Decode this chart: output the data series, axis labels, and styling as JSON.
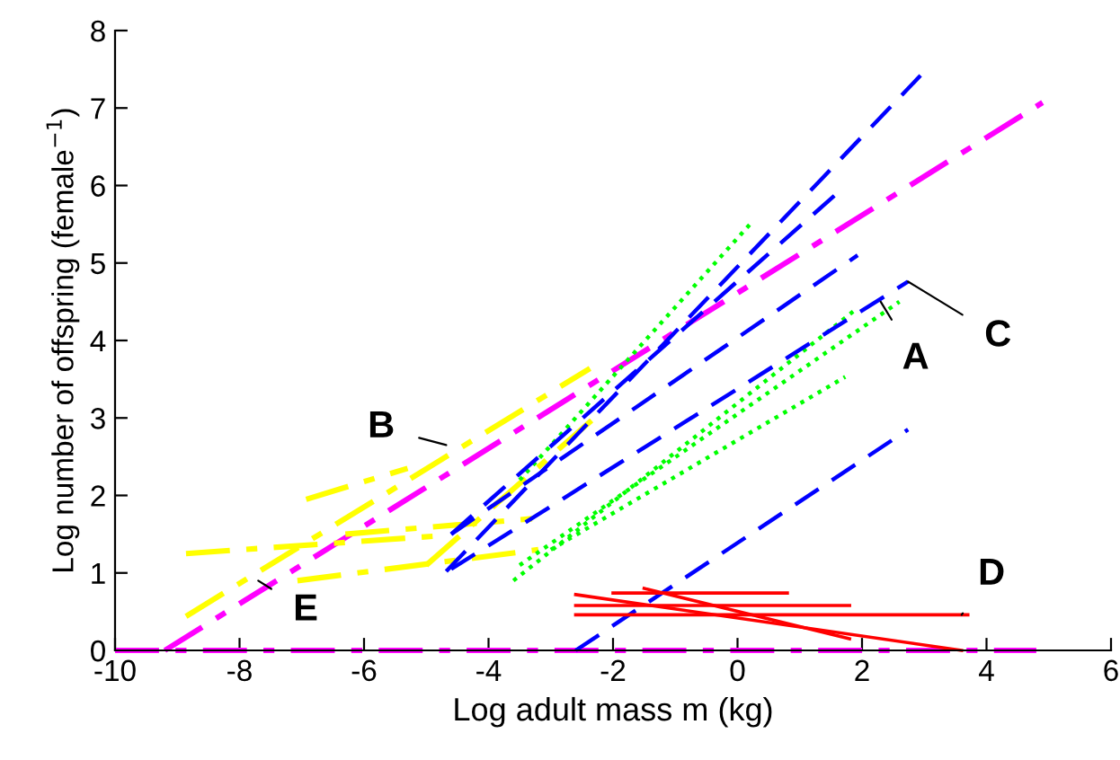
{
  "chart_data": {
    "type": "line",
    "xlabel": "Log adult mass m (kg)",
    "ylabel": "Log number of offspring (female$^{−1}$)",
    "xlim": [
      -10,
      6
    ],
    "xticks": [
      -10,
      -8,
      -6,
      -4,
      -2,
      0,
      2,
      4,
      6
    ],
    "ylim": [
      0,
      8
    ],
    "yticks": [
      0,
      1,
      2,
      3,
      4,
      5,
      6,
      7,
      8
    ],
    "grid": false,
    "legend": false,
    "series": [
      {
        "color": "#ff00ff",
        "line_style": "dashdot",
        "x": [
          -10,
          4.8
        ],
        "values": [
          0,
          0
        ]
      },
      {
        "color": "#ff00ff",
        "line_style": "dashdot",
        "x": [
          -9.2,
          4.9
        ],
        "values": [
          0,
          7.07
        ]
      },
      {
        "color": "#ffff00",
        "line_style": "dashdot",
        "x": [
          -8.86,
          -2.37
        ],
        "values": [
          0.44,
          3.64
        ]
      },
      {
        "color": "#ffff00",
        "line_style": "dashdot",
        "x": [
          -8.86,
          -4.76
        ],
        "values": [
          1.25,
          1.48
        ]
      },
      {
        "color": "#ffff00",
        "line_style": "dashdot",
        "x": [
          -6.93,
          -5.3
        ],
        "values": [
          1.95,
          2.35
        ]
      },
      {
        "color": "#ffff00",
        "line_style": "dashdot",
        "x": [
          -7.07,
          -3.2
        ],
        "values": [
          0.9,
          1.3
        ]
      },
      {
        "color": "#ffff00",
        "line_style": "dashdot",
        "x": [
          -6.3,
          -3.3
        ],
        "values": [
          1.5,
          1.7
        ]
      },
      {
        "color": "#ffff00",
        "line_style": "dashdot",
        "x": [
          -5.0,
          -2.3
        ],
        "values": [
          1.1,
          3.0
        ]
      },
      {
        "color": "#00ff00",
        "line_style": "dotted",
        "x": [
          -3.6,
          1.9
        ],
        "values": [
          0.9,
          4.4
        ]
      },
      {
        "color": "#00ff00",
        "line_style": "dotted",
        "x": [
          -3.5,
          2.6
        ],
        "values": [
          1.1,
          4.5
        ]
      },
      {
        "color": "#00ff00",
        "line_style": "dotted",
        "x": [
          -3.0,
          1.73
        ],
        "values": [
          1.3,
          3.53
        ]
      },
      {
        "color": "#00ff00",
        "line_style": "dotted",
        "x": [
          -3.5,
          0.2
        ],
        "values": [
          2.2,
          5.5
        ]
      },
      {
        "color": "#0000ff",
        "line_style": "dashed",
        "x": [
          -4.68,
          2.94
        ],
        "values": [
          1.02,
          7.42
        ]
      },
      {
        "color": "#0000ff",
        "line_style": "dashed",
        "x": [
          -4.6,
          1.6
        ],
        "values": [
          1.5,
          5.9
        ]
      },
      {
        "color": "#0000ff",
        "line_style": "dashed",
        "x": [
          -4.6,
          1.93
        ],
        "values": [
          1.5,
          5.1
        ]
      },
      {
        "color": "#0000ff",
        "line_style": "dashed",
        "x": [
          -4.6,
          2.74
        ],
        "values": [
          1.05,
          4.76
        ]
      },
      {
        "color": "#0000ff",
        "line_style": "dashed",
        "x": [
          -2.6,
          2.74
        ],
        "values": [
          0,
          2.85
        ]
      },
      {
        "color": "#ff0000",
        "line_style": "solid",
        "x": [
          -2.6,
          3.6
        ],
        "values": [
          0.72,
          0
        ]
      },
      {
        "color": "#ff0000",
        "line_style": "solid",
        "x": [
          -2.6,
          3.7
        ],
        "values": [
          0.46,
          0.46
        ]
      },
      {
        "color": "#ff0000",
        "line_style": "solid",
        "x": [
          -2.6,
          1.8
        ],
        "values": [
          0.58,
          0.58
        ]
      },
      {
        "color": "#ff0000",
        "line_style": "solid",
        "x": [
          -2.0,
          0.8
        ],
        "values": [
          0.74,
          0.74
        ]
      },
      {
        "color": "#ff0000",
        "line_style": "solid",
        "x": [
          -1.5,
          1.8
        ],
        "values": [
          0.8,
          0.15
        ]
      }
    ],
    "annotations": [
      {
        "text": "A",
        "x": 2.3,
        "y": 4.5
      },
      {
        "text": "B",
        "x": -4.68,
        "y": 2.65
      },
      {
        "text": "C",
        "x": 2.74,
        "y": 4.76
      },
      {
        "text": "D",
        "x": 3.6,
        "y": 0.46
      },
      {
        "text": "E",
        "x": -7.7,
        "y": 0.9
      }
    ]
  }
}
